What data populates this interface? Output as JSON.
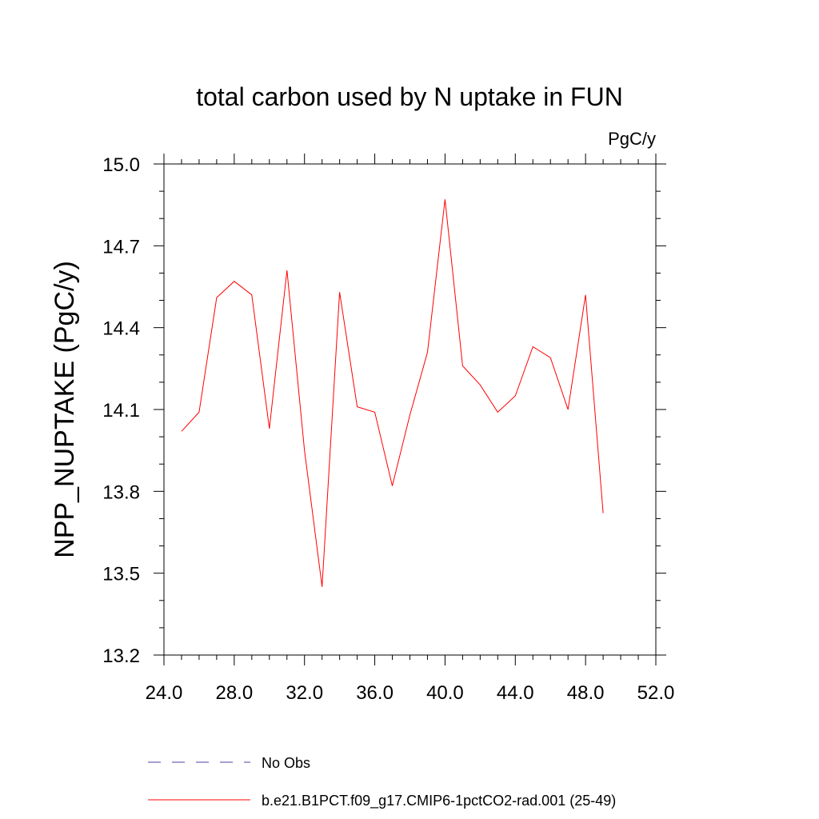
{
  "chart_data": {
    "type": "line",
    "title": "total carbon used by N uptake in FUN",
    "units_label": "PgC/y",
    "ylabel": "NPP_NUPTAKE  (PgC/y)",
    "xlabel": "",
    "xlim": [
      24.0,
      52.0
    ],
    "ylim": [
      13.2,
      15.0
    ],
    "xticks": [
      "24.0",
      "28.0",
      "32.0",
      "36.0",
      "40.0",
      "44.0",
      "48.0",
      "52.0"
    ],
    "yticks": [
      "13.2",
      "13.5",
      "13.8",
      "14.1",
      "14.4",
      "14.7",
      "15.0"
    ],
    "grid": false,
    "legend_position": "bottom",
    "series": [
      {
        "name": "b.e21.B1PCT.f09_g17.CMIP6-1pctCO2-rad.001 (25-49)",
        "color": "#ff0000",
        "dash": "solid",
        "x": [
          25,
          26,
          27,
          28,
          29,
          30,
          31,
          32,
          33,
          34,
          35,
          36,
          37,
          38,
          39,
          40,
          41,
          42,
          43,
          44,
          45,
          46,
          47,
          48,
          49
        ],
        "y": [
          14.02,
          14.09,
          14.51,
          14.57,
          14.52,
          14.03,
          14.61,
          13.95,
          13.45,
          14.53,
          14.11,
          14.09,
          13.82,
          14.08,
          14.31,
          14.87,
          14.26,
          14.19,
          14.09,
          14.15,
          14.33,
          14.29,
          14.1,
          14.52,
          13.72
        ]
      }
    ],
    "legend": [
      {
        "label": "No Obs",
        "color": "#4b3fa0",
        "dash": "dashed"
      },
      {
        "label": "b.e21.B1PCT.f09_g17.CMIP6-1pctCO2-rad.001 (25-49)",
        "color": "#ff0000",
        "dash": "solid"
      }
    ]
  }
}
